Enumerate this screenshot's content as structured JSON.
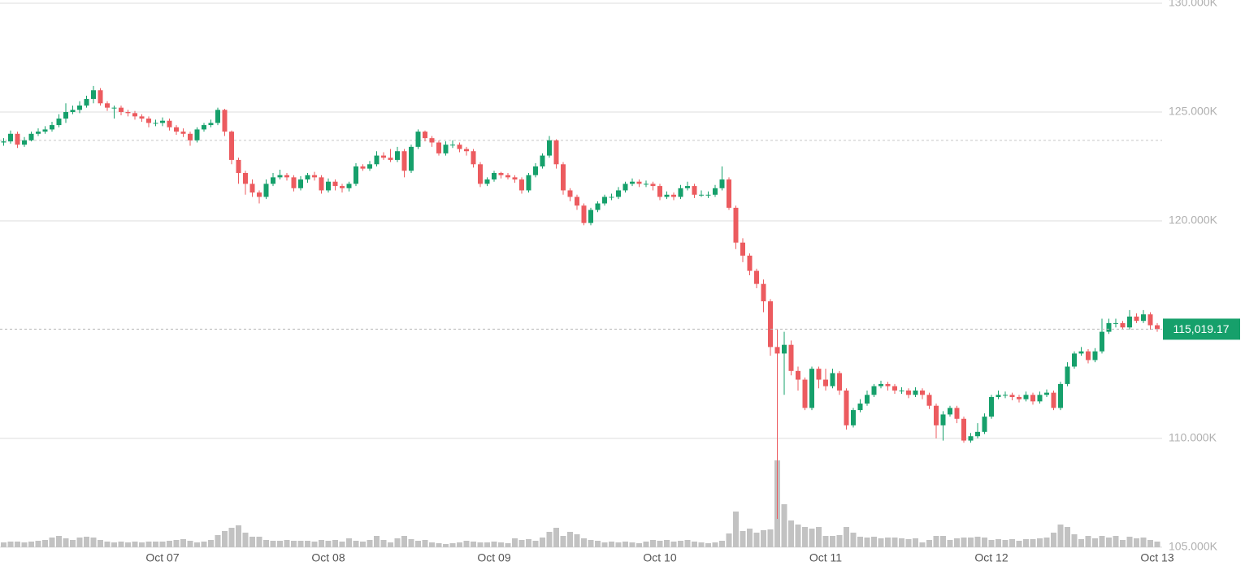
{
  "chart_data": {
    "type": "candlestick",
    "categories": [
      null,
      null,
      null,
      null,
      null,
      null,
      null,
      null,
      null,
      null,
      null,
      null,
      null,
      null,
      null,
      null,
      null,
      null,
      null,
      null,
      null,
      null,
      null,
      "Oct 07",
      null,
      null,
      null,
      null,
      null,
      null,
      null,
      null,
      null,
      null,
      null,
      null,
      null,
      null,
      null,
      null,
      null,
      null,
      null,
      null,
      null,
      null,
      null,
      "Oct 08",
      null,
      null,
      null,
      null,
      null,
      null,
      null,
      null,
      null,
      null,
      null,
      null,
      null,
      null,
      null,
      null,
      null,
      null,
      null,
      null,
      null,
      null,
      null,
      "Oct 09",
      null,
      null,
      null,
      null,
      null,
      null,
      null,
      null,
      null,
      null,
      null,
      null,
      null,
      null,
      null,
      null,
      null,
      null,
      null,
      null,
      null,
      null,
      null,
      "Oct 10",
      null,
      null,
      null,
      null,
      null,
      null,
      null,
      null,
      null,
      null,
      null,
      null,
      null,
      null,
      null,
      null,
      null,
      null,
      null,
      null,
      null,
      null,
      null,
      "Oct 11",
      null,
      null,
      null,
      null,
      null,
      null,
      null,
      null,
      null,
      null,
      null,
      null,
      null,
      null,
      null,
      null,
      null,
      null,
      null,
      null,
      null,
      null,
      null,
      "Oct 12",
      null,
      null,
      null,
      null,
      null,
      null,
      null,
      null,
      null,
      null,
      null,
      null,
      null,
      null,
      null,
      null,
      null,
      null,
      null,
      null,
      null,
      null,
      null,
      "Oct 13"
    ],
    "open": [
      123600,
      123650,
      124000,
      123500,
      123700,
      124000,
      124100,
      124200,
      124400,
      124700,
      125000,
      125100,
      125300,
      125600,
      126000,
      125400,
      125200,
      125200,
      125000,
      124950,
      124800,
      124700,
      124500,
      124500,
      124600,
      124300,
      124100,
      124000,
      123700,
      124200,
      124400,
      124500,
      125100,
      124100,
      122800,
      122200,
      121700,
      121300,
      121100,
      121700,
      122000,
      122100,
      122000,
      121500,
      121900,
      122100,
      122000,
      121400,
      121800,
      121600,
      121500,
      121700,
      122500,
      122400,
      122600,
      123000,
      122900,
      122800,
      123200,
      122300,
      123400,
      124100,
      123800,
      123600,
      123100,
      123500,
      123500,
      123300,
      123200,
      122600,
      121700,
      121900,
      122200,
      122100,
      122000,
      121900,
      121400,
      122100,
      122500,
      123000,
      123700,
      122600,
      121400,
      121100,
      120700,
      119900,
      120500,
      120800,
      121100,
      121100,
      121400,
      121700,
      121800,
      121700,
      121700,
      121600,
      121100,
      121200,
      121100,
      121500,
      121600,
      121200,
      121200,
      121200,
      121500,
      121900,
      120600,
      119000,
      118400,
      117700,
      117100,
      116300,
      114200,
      113900,
      114300,
      113100,
      112700,
      111400,
      113200,
      112700,
      112400,
      113000,
      112200,
      110600,
      111300,
      111600,
      112000,
      112400,
      112500,
      112400,
      112200,
      112200,
      112000,
      112200,
      112000,
      111500,
      110600,
      111100,
      111400,
      110900,
      109900,
      110100,
      110300,
      111000,
      111900,
      112000,
      112000,
      111900,
      111800,
      112000,
      111700,
      112000,
      112100,
      111400,
      112500,
      113300,
      113900,
      114000,
      113600,
      114000,
      114900,
      115300,
      115300,
      115100,
      115600,
      115400,
      115700,
      115200
    ],
    "high": [
      123800,
      124150,
      124100,
      123850,
      124100,
      124250,
      124350,
      124550,
      124900,
      125400,
      125300,
      125500,
      125750,
      126200,
      126100,
      125500,
      125300,
      125300,
      125100,
      125050,
      124900,
      124800,
      124650,
      124750,
      124700,
      124400,
      124250,
      124100,
      124300,
      124500,
      124650,
      125200,
      125150,
      124150,
      122900,
      122300,
      121900,
      121400,
      121900,
      122200,
      122350,
      122200,
      122100,
      122050,
      122200,
      122250,
      122100,
      121950,
      121900,
      121700,
      121800,
      122650,
      122600,
      122750,
      123200,
      123150,
      123300,
      123400,
      123300,
      123500,
      124200,
      124150,
      123900,
      123700,
      123650,
      123700,
      123600,
      123400,
      123300,
      122700,
      122000,
      122300,
      122250,
      122200,
      122100,
      122000,
      122200,
      122650,
      123100,
      123900,
      123750,
      122700,
      121500,
      121200,
      120800,
      120600,
      120900,
      121200,
      121250,
      121550,
      121800,
      121950,
      121900,
      121850,
      121800,
      121700,
      121350,
      121300,
      121650,
      121800,
      121700,
      121400,
      121350,
      121650,
      122500,
      122000,
      120700,
      119200,
      118500,
      117800,
      117300,
      116400,
      115000,
      114900,
      114500,
      113300,
      112800,
      113300,
      113300,
      113200,
      113200,
      113100,
      112300,
      111400,
      111800,
      112200,
      112500,
      112650,
      112600,
      112500,
      112350,
      112300,
      112350,
      112300,
      112100,
      111600,
      111250,
      111500,
      111500,
      111000,
      110250,
      110700,
      111150,
      112000,
      112200,
      112150,
      112100,
      112000,
      112150,
      112100,
      112150,
      112250,
      112200,
      112600,
      113500,
      114000,
      114200,
      114100,
      114150,
      115500,
      115500,
      115500,
      115400,
      115900,
      115750,
      115900,
      115800,
      115300
    ],
    "low": [
      123450,
      123550,
      123350,
      123400,
      123650,
      123900,
      124000,
      124100,
      124300,
      124500,
      124900,
      124950,
      125200,
      125400,
      125300,
      125050,
      124700,
      124850,
      124800,
      124650,
      124550,
      124300,
      124350,
      124350,
      124150,
      123950,
      123850,
      123450,
      123600,
      124100,
      124300,
      124400,
      123900,
      122600,
      121700,
      121200,
      121100,
      120800,
      121000,
      121600,
      121900,
      121850,
      121350,
      121400,
      121750,
      121850,
      121250,
      121300,
      121400,
      121300,
      121350,
      121600,
      122300,
      122300,
      122500,
      122800,
      122700,
      122700,
      122000,
      122200,
      123300,
      123650,
      123400,
      123000,
      123000,
      123350,
      123150,
      123000,
      122450,
      121550,
      121600,
      121800,
      121950,
      121900,
      121750,
      121250,
      121300,
      122000,
      122400,
      122900,
      122400,
      121200,
      120900,
      120500,
      119800,
      119800,
      120400,
      120700,
      120950,
      121000,
      121300,
      121600,
      121550,
      121550,
      121400,
      120950,
      121000,
      120950,
      121000,
      121400,
      121050,
      121100,
      121050,
      121100,
      121400,
      120500,
      118700,
      118100,
      117500,
      116900,
      115800,
      113800,
      106300,
      112000,
      112900,
      112200,
      111300,
      111300,
      112300,
      112200,
      112300,
      112000,
      110400,
      110500,
      111200,
      111500,
      111900,
      112300,
      112200,
      112050,
      112050,
      111850,
      111900,
      111800,
      111350,
      110000,
      109900,
      111000,
      110700,
      109800,
      109800,
      110000,
      110200,
      110900,
      111800,
      111850,
      111750,
      111650,
      111700,
      111550,
      111600,
      111900,
      111300,
      111300,
      112400,
      113200,
      113800,
      113450,
      113500,
      113900,
      114800,
      115100,
      115000,
      115000,
      115300,
      115300,
      115000,
      114900
    ],
    "close": [
      123650,
      124000,
      123500,
      123700,
      124000,
      124100,
      124200,
      124400,
      124700,
      125000,
      125100,
      125300,
      125600,
      126000,
      125400,
      125200,
      125200,
      125000,
      124950,
      124800,
      124700,
      124500,
      124500,
      124600,
      124300,
      124100,
      124000,
      123700,
      124200,
      124400,
      124500,
      125100,
      124100,
      122800,
      122200,
      121700,
      121300,
      121100,
      121700,
      122000,
      122100,
      122000,
      121500,
      121900,
      122100,
      122000,
      121400,
      121800,
      121600,
      121500,
      121700,
      122500,
      122400,
      122600,
      123000,
      122900,
      122800,
      123200,
      122300,
      123400,
      124100,
      123800,
      123600,
      123100,
      123500,
      123500,
      123300,
      123200,
      122600,
      121700,
      121900,
      122200,
      122100,
      122000,
      121900,
      121400,
      122100,
      122500,
      123000,
      123700,
      122600,
      121400,
      121100,
      120700,
      119900,
      120500,
      120800,
      121100,
      121100,
      121400,
      121700,
      121800,
      121700,
      121700,
      121600,
      121100,
      121200,
      121100,
      121500,
      121600,
      121200,
      121200,
      121200,
      121500,
      121900,
      120600,
      119000,
      118400,
      117700,
      117100,
      116300,
      114200,
      113900,
      114300,
      113100,
      112700,
      111400,
      113200,
      112700,
      112400,
      113000,
      112200,
      110600,
      111300,
      111600,
      112000,
      112400,
      112500,
      112400,
      112200,
      112200,
      112000,
      112200,
      112000,
      111500,
      110600,
      111100,
      111400,
      110900,
      109900,
      110100,
      110300,
      111000,
      111900,
      112000,
      112000,
      111900,
      111800,
      112000,
      111700,
      112000,
      112100,
      111400,
      112500,
      113300,
      113900,
      114000,
      113600,
      114000,
      114900,
      115300,
      115300,
      115100,
      115600,
      115400,
      115700,
      115200,
      115020
    ],
    "volume": [
      6,
      7,
      7,
      6,
      7,
      8,
      9,
      12,
      14,
      11,
      9,
      12,
      13,
      12,
      9,
      7,
      6,
      7,
      6,
      7,
      6,
      7,
      7,
      7,
      8,
      9,
      10,
      8,
      6,
      7,
      9,
      15,
      20,
      24,
      27,
      18,
      13,
      13,
      9,
      8,
      8,
      9,
      8,
      8,
      8,
      7,
      9,
      8,
      9,
      7,
      11,
      8,
      7,
      9,
      14,
      9,
      6,
      11,
      14,
      10,
      8,
      9,
      6,
      5,
      4,
      5,
      6,
      8,
      7,
      6,
      6,
      7,
      6,
      5,
      11,
      9,
      10,
      8,
      12,
      19,
      24,
      14,
      19,
      16,
      11,
      9,
      8,
      6,
      7,
      6,
      7,
      6,
      5,
      7,
      9,
      8,
      9,
      7,
      8,
      9,
      7,
      6,
      5,
      6,
      8,
      17,
      44,
      20,
      23,
      18,
      21,
      22,
      107,
      53,
      33,
      28,
      25,
      23,
      25,
      14,
      14,
      15,
      25,
      18,
      13,
      12,
      13,
      11,
      12,
      12,
      11,
      10,
      11,
      6,
      9,
      14,
      14,
      9,
      11,
      12,
      12,
      13,
      12,
      9,
      10,
      9,
      10,
      8,
      10,
      10,
      11,
      12,
      18,
      28,
      25,
      16,
      10,
      14,
      11,
      14,
      12,
      14,
      9,
      13,
      11,
      12,
      9,
      7
    ],
    "up_color": "#16a06b",
    "down_color": "#ec5b5f",
    "volume_color": "#c2c2c2",
    "ylim": [
      103950,
      130150
    ],
    "yticks": [
      {
        "value": 105000,
        "label": "105.000K"
      },
      {
        "value": 110000,
        "label": "110.000K"
      },
      {
        "value": 120000,
        "label": "120.000K"
      },
      {
        "value": 125000,
        "label": "125.000K"
      },
      {
        "value": 130000,
        "label": "130.000K"
      }
    ],
    "grid": true,
    "reference_line": 123700,
    "last_price": {
      "value": 115019.17,
      "label": "115,019.17"
    },
    "last_price_color": "#16a06b"
  }
}
